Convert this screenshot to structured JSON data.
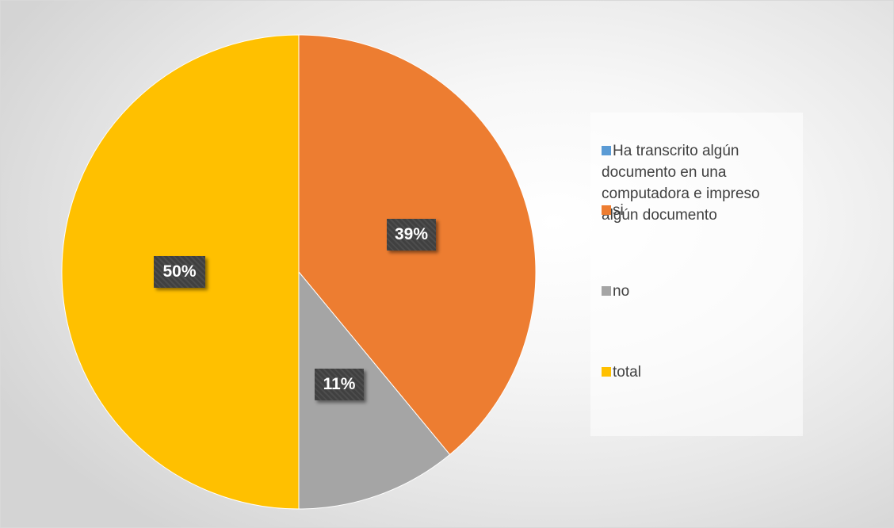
{
  "chart_data": {
    "type": "pie",
    "title": "",
    "slices": [
      {
        "label": "Ha transcrito algún documento en una computadora e impreso algún documento",
        "value": 0,
        "color": "#5b9bd5",
        "data_label": ""
      },
      {
        "label": "si",
        "value": 39,
        "color": "#ed7d31",
        "data_label": "39%"
      },
      {
        "label": "no",
        "value": 11,
        "color": "#a5a5a5",
        "data_label": "11%"
      },
      {
        "label": "total",
        "value": 50,
        "color": "#ffc000",
        "data_label": "50%"
      }
    ],
    "legend_position": "right"
  }
}
